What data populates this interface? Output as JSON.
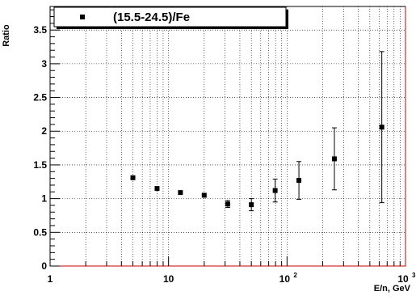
{
  "chart_data": {
    "type": "scatter",
    "title": "",
    "xlabel": "E/n, GeV",
    "ylabel": "Ratio",
    "xscale": "log",
    "xlim": [
      1,
      1000
    ],
    "ylim": [
      0,
      3.85
    ],
    "grid": true,
    "legend_position": "top-left",
    "x_tick_labels": [
      {
        "value": 1,
        "base": "1",
        "exp": ""
      },
      {
        "value": 10,
        "base": "10",
        "exp": ""
      },
      {
        "value": 100,
        "base": "10",
        "exp": "2"
      },
      {
        "value": 1000,
        "base": "10",
        "exp": "3"
      }
    ],
    "y_tick_labels": [
      "0",
      "0.5",
      "1",
      "1.5",
      "2",
      "2.5",
      "3",
      "3.5"
    ],
    "series": [
      {
        "name": "(15.5-24.5)/Fe",
        "color": "#000000",
        "marker": "square",
        "points": [
          {
            "x": 5.0,
            "y": 1.31,
            "err": 0.03
          },
          {
            "x": 8.0,
            "y": 1.15,
            "err": 0.03
          },
          {
            "x": 12.6,
            "y": 1.09,
            "err": 0.03
          },
          {
            "x": 20.0,
            "y": 1.05,
            "err": 0.04
          },
          {
            "x": 31.6,
            "y": 0.92,
            "err": 0.05
          },
          {
            "x": 50.0,
            "y": 0.91,
            "err": 0.09
          },
          {
            "x": 79.4,
            "y": 1.12,
            "err": 0.17
          },
          {
            "x": 126,
            "y": 1.27,
            "err": 0.28
          },
          {
            "x": 251,
            "y": 1.59,
            "err": 0.46
          },
          {
            "x": 631,
            "y": 2.06,
            "err": 1.12
          }
        ]
      }
    ]
  }
}
